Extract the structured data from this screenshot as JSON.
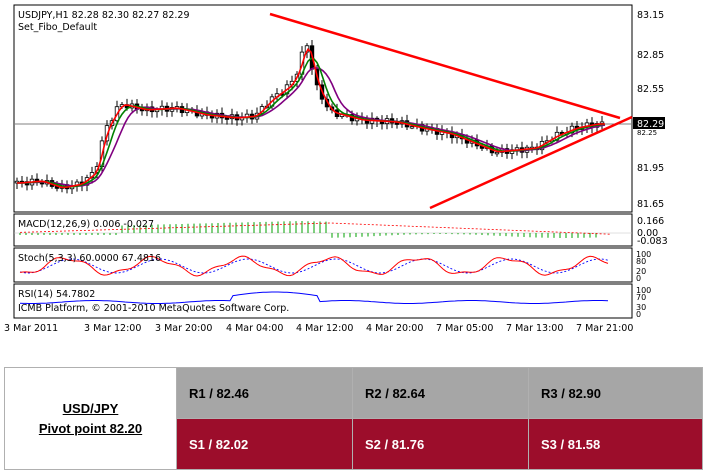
{
  "chart": {
    "symbol_line": "USDJPY,H1  82.28 82.30 82.27 82.29",
    "template_name": "Set_Fibo_Default",
    "price_ticks": [
      "83.15",
      "82.85",
      "82.55",
      "82.29",
      "81.95",
      "81.65"
    ],
    "current_price": "82.29",
    "current_price_sub": "82.25",
    "time_labels": [
      "3 Mar 2011",
      "3 Mar 12:00",
      "3 Mar 20:00",
      "4 Mar 04:00",
      "4 Mar 12:00",
      "4 Mar 20:00",
      "7 Mar 05:00",
      "7 Mar 13:00",
      "7 Mar 21:00"
    ],
    "macd": {
      "label": "MACD(12,26,9) 0.006 -0.027",
      "ticks": [
        "0.166",
        "0.00",
        "-0.083"
      ]
    },
    "stoch": {
      "label": "Stoch(5,3,3) 60.0000 67.4816",
      "ticks": [
        "100",
        "80",
        "20",
        "0"
      ]
    },
    "rsi": {
      "label": "RSI(14) 54.7802",
      "ticks": [
        "100",
        "70",
        "30",
        "0"
      ],
      "copyright": "ICMB Platform, © 2001-2010 MetaQuotes Software Corp."
    },
    "colors": {
      "bull_candle": "#ffffff",
      "bear_candle": "#000000",
      "ma_fast": "#ff0000",
      "ma_mid": "#008000",
      "ma_slow": "#800080",
      "trendline": "#ff0000"
    }
  },
  "pivot": {
    "pair": "USD/JPY",
    "pivot_label": "Pivot point 82.20",
    "resistances": [
      "R1 / 82.46",
      "R2 / 82.64",
      "R3 / 82.90"
    ],
    "supports": [
      "S1 / 82.02",
      "S2 / 81.76",
      "S3 / 81.58"
    ],
    "colors": {
      "resistance_bg": "#a6a6a6",
      "support_bg": "#9c0d2b",
      "support_text": "#ffffff"
    }
  }
}
